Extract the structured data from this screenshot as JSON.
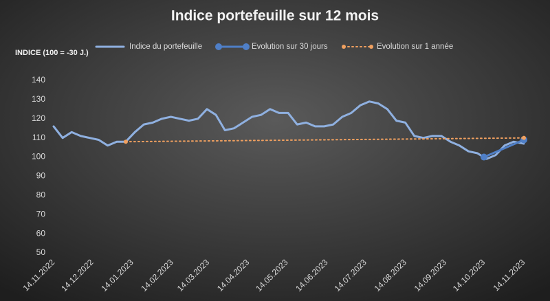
{
  "chart_data": {
    "type": "line",
    "title": "Indice portefeuille sur 12 mois",
    "y_label": "INDICE (100 = -30 J.)",
    "ylim": [
      50,
      140
    ],
    "yticks": [
      50,
      60,
      70,
      80,
      90,
      100,
      110,
      120,
      130,
      140
    ],
    "xlim": [
      "14.11.2022",
      "14.11.2023"
    ],
    "xticks": [
      "14.11.2022",
      "14.12.2022",
      "14.01.2023",
      "14.02.2023",
      "14.03.2023",
      "14.04.2023",
      "14.05.2023",
      "14.06.2023",
      "14.07.2023",
      "14.08.2023",
      "14.09.2023",
      "14.10.2023",
      "14.11.2023"
    ],
    "grid": false,
    "legend": "top",
    "series": [
      {
        "name": "Indice du portefeuille",
        "color": "#8fb0e0",
        "style": "solid",
        "x": [
          "14.11.2022",
          "21.11.2022",
          "28.11.2022",
          "05.12.2022",
          "12.12.2022",
          "19.12.2022",
          "26.12.2022",
          "02.01.2023",
          "09.01.2023",
          "16.01.2023",
          "23.01.2023",
          "30.01.2023",
          "06.02.2023",
          "13.02.2023",
          "20.02.2023",
          "27.02.2023",
          "06.03.2023",
          "13.03.2023",
          "20.03.2023",
          "27.03.2023",
          "03.04.2023",
          "10.04.2023",
          "17.04.2023",
          "24.04.2023",
          "01.05.2023",
          "08.05.2023",
          "15.05.2023",
          "22.05.2023",
          "29.05.2023",
          "05.06.2023",
          "12.06.2023",
          "19.06.2023",
          "26.06.2023",
          "03.07.2023",
          "10.07.2023",
          "17.07.2023",
          "24.07.2023",
          "31.07.2023",
          "07.08.2023",
          "14.08.2023",
          "21.08.2023",
          "28.08.2023",
          "04.09.2023",
          "11.09.2023",
          "18.09.2023",
          "25.09.2023",
          "02.10.2023",
          "09.10.2023",
          "16.10.2023",
          "23.10.2023",
          "30.10.2023",
          "06.11.2023",
          "14.11.2023"
        ],
        "values": [
          116,
          110,
          113,
          111,
          110,
          109,
          106,
          108,
          108,
          113,
          117,
          118,
          120,
          121,
          120,
          119,
          120,
          125,
          122,
          114,
          115,
          118,
          121,
          122,
          125,
          123,
          123,
          117,
          118,
          116,
          116,
          117,
          121,
          123,
          127,
          129,
          128,
          125,
          119,
          118,
          111,
          110,
          111,
          111,
          108,
          106,
          103,
          102,
          99,
          101,
          106,
          108,
          107
        ]
      },
      {
        "name": "Evolution sur 30 jours",
        "color": "#4f7fc7",
        "style": "solid",
        "x": [
          "14.10.2023",
          "14.11.2023"
        ],
        "values": [
          100,
          109
        ]
      },
      {
        "name": "Evolution sur 1 année",
        "color": "#f0a060",
        "style": "dotted",
        "x": [
          "09.01.2023",
          "14.11.2023"
        ],
        "values": [
          108,
          110
        ]
      }
    ]
  }
}
